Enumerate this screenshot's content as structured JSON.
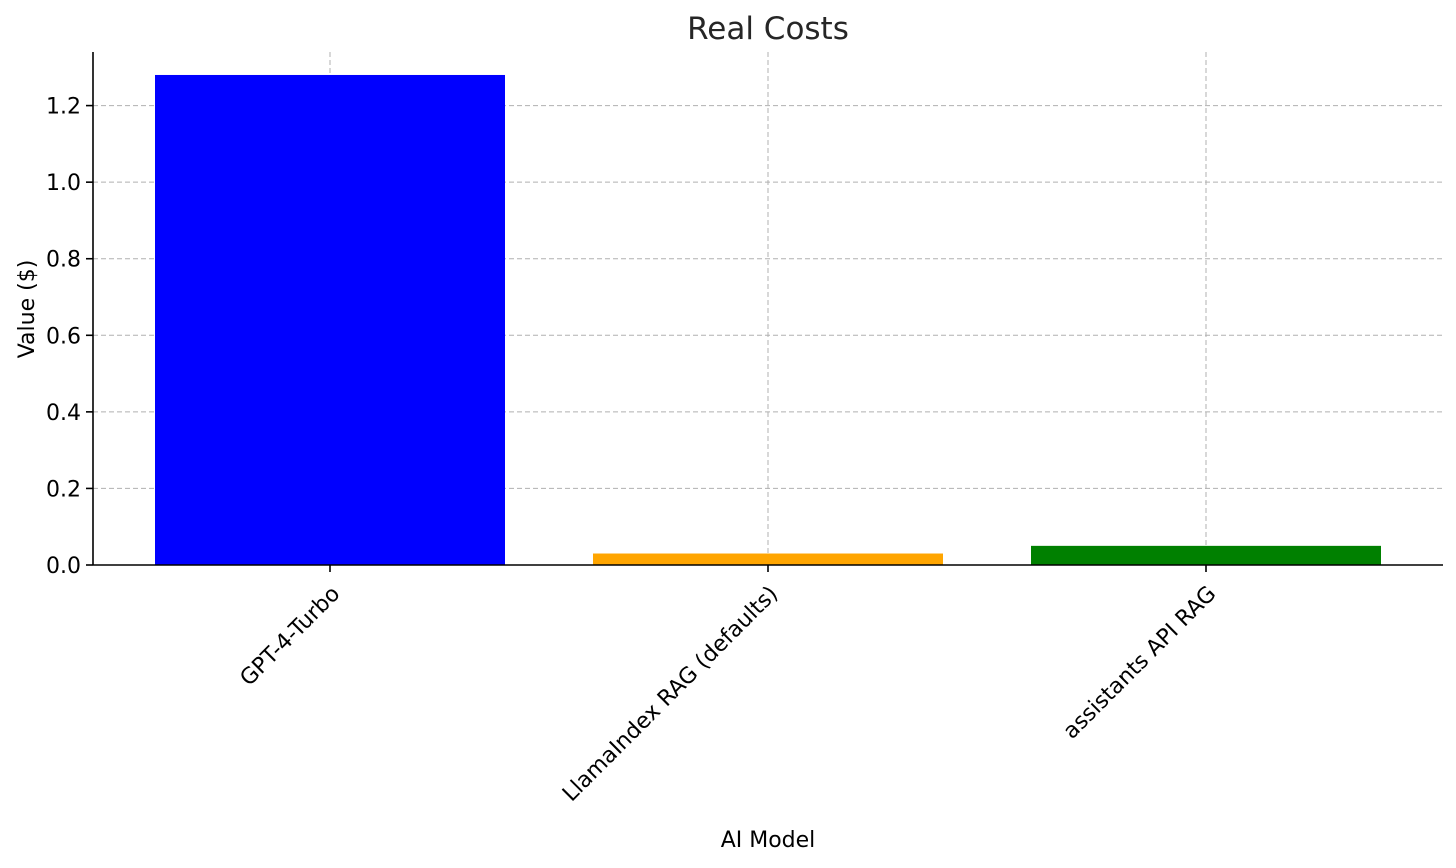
{
  "chart_data": {
    "type": "bar",
    "title": "Real Costs",
    "xlabel": "AI Model",
    "ylabel": "Value ($)",
    "categories": [
      "GPT-4-Turbo",
      "LlamaIndex RAG (defaults)",
      "assistants API RAG"
    ],
    "values": [
      1.28,
      0.03,
      0.05
    ],
    "colors": [
      "#0000ff",
      "#ffa500",
      "#008000"
    ],
    "ylim": [
      0,
      1.34
    ],
    "yticks": [
      {
        "value": 0.0,
        "label": "0.0"
      },
      {
        "value": 0.2,
        "label": "0.2"
      },
      {
        "value": 0.4,
        "label": "0.4"
      },
      {
        "value": 0.6,
        "label": "0.6"
      },
      {
        "value": 0.8,
        "label": "0.8"
      },
      {
        "value": 1.0,
        "label": "1.0"
      },
      {
        "value": 1.2,
        "label": "1.2"
      }
    ],
    "grid": true,
    "legend": "none"
  }
}
